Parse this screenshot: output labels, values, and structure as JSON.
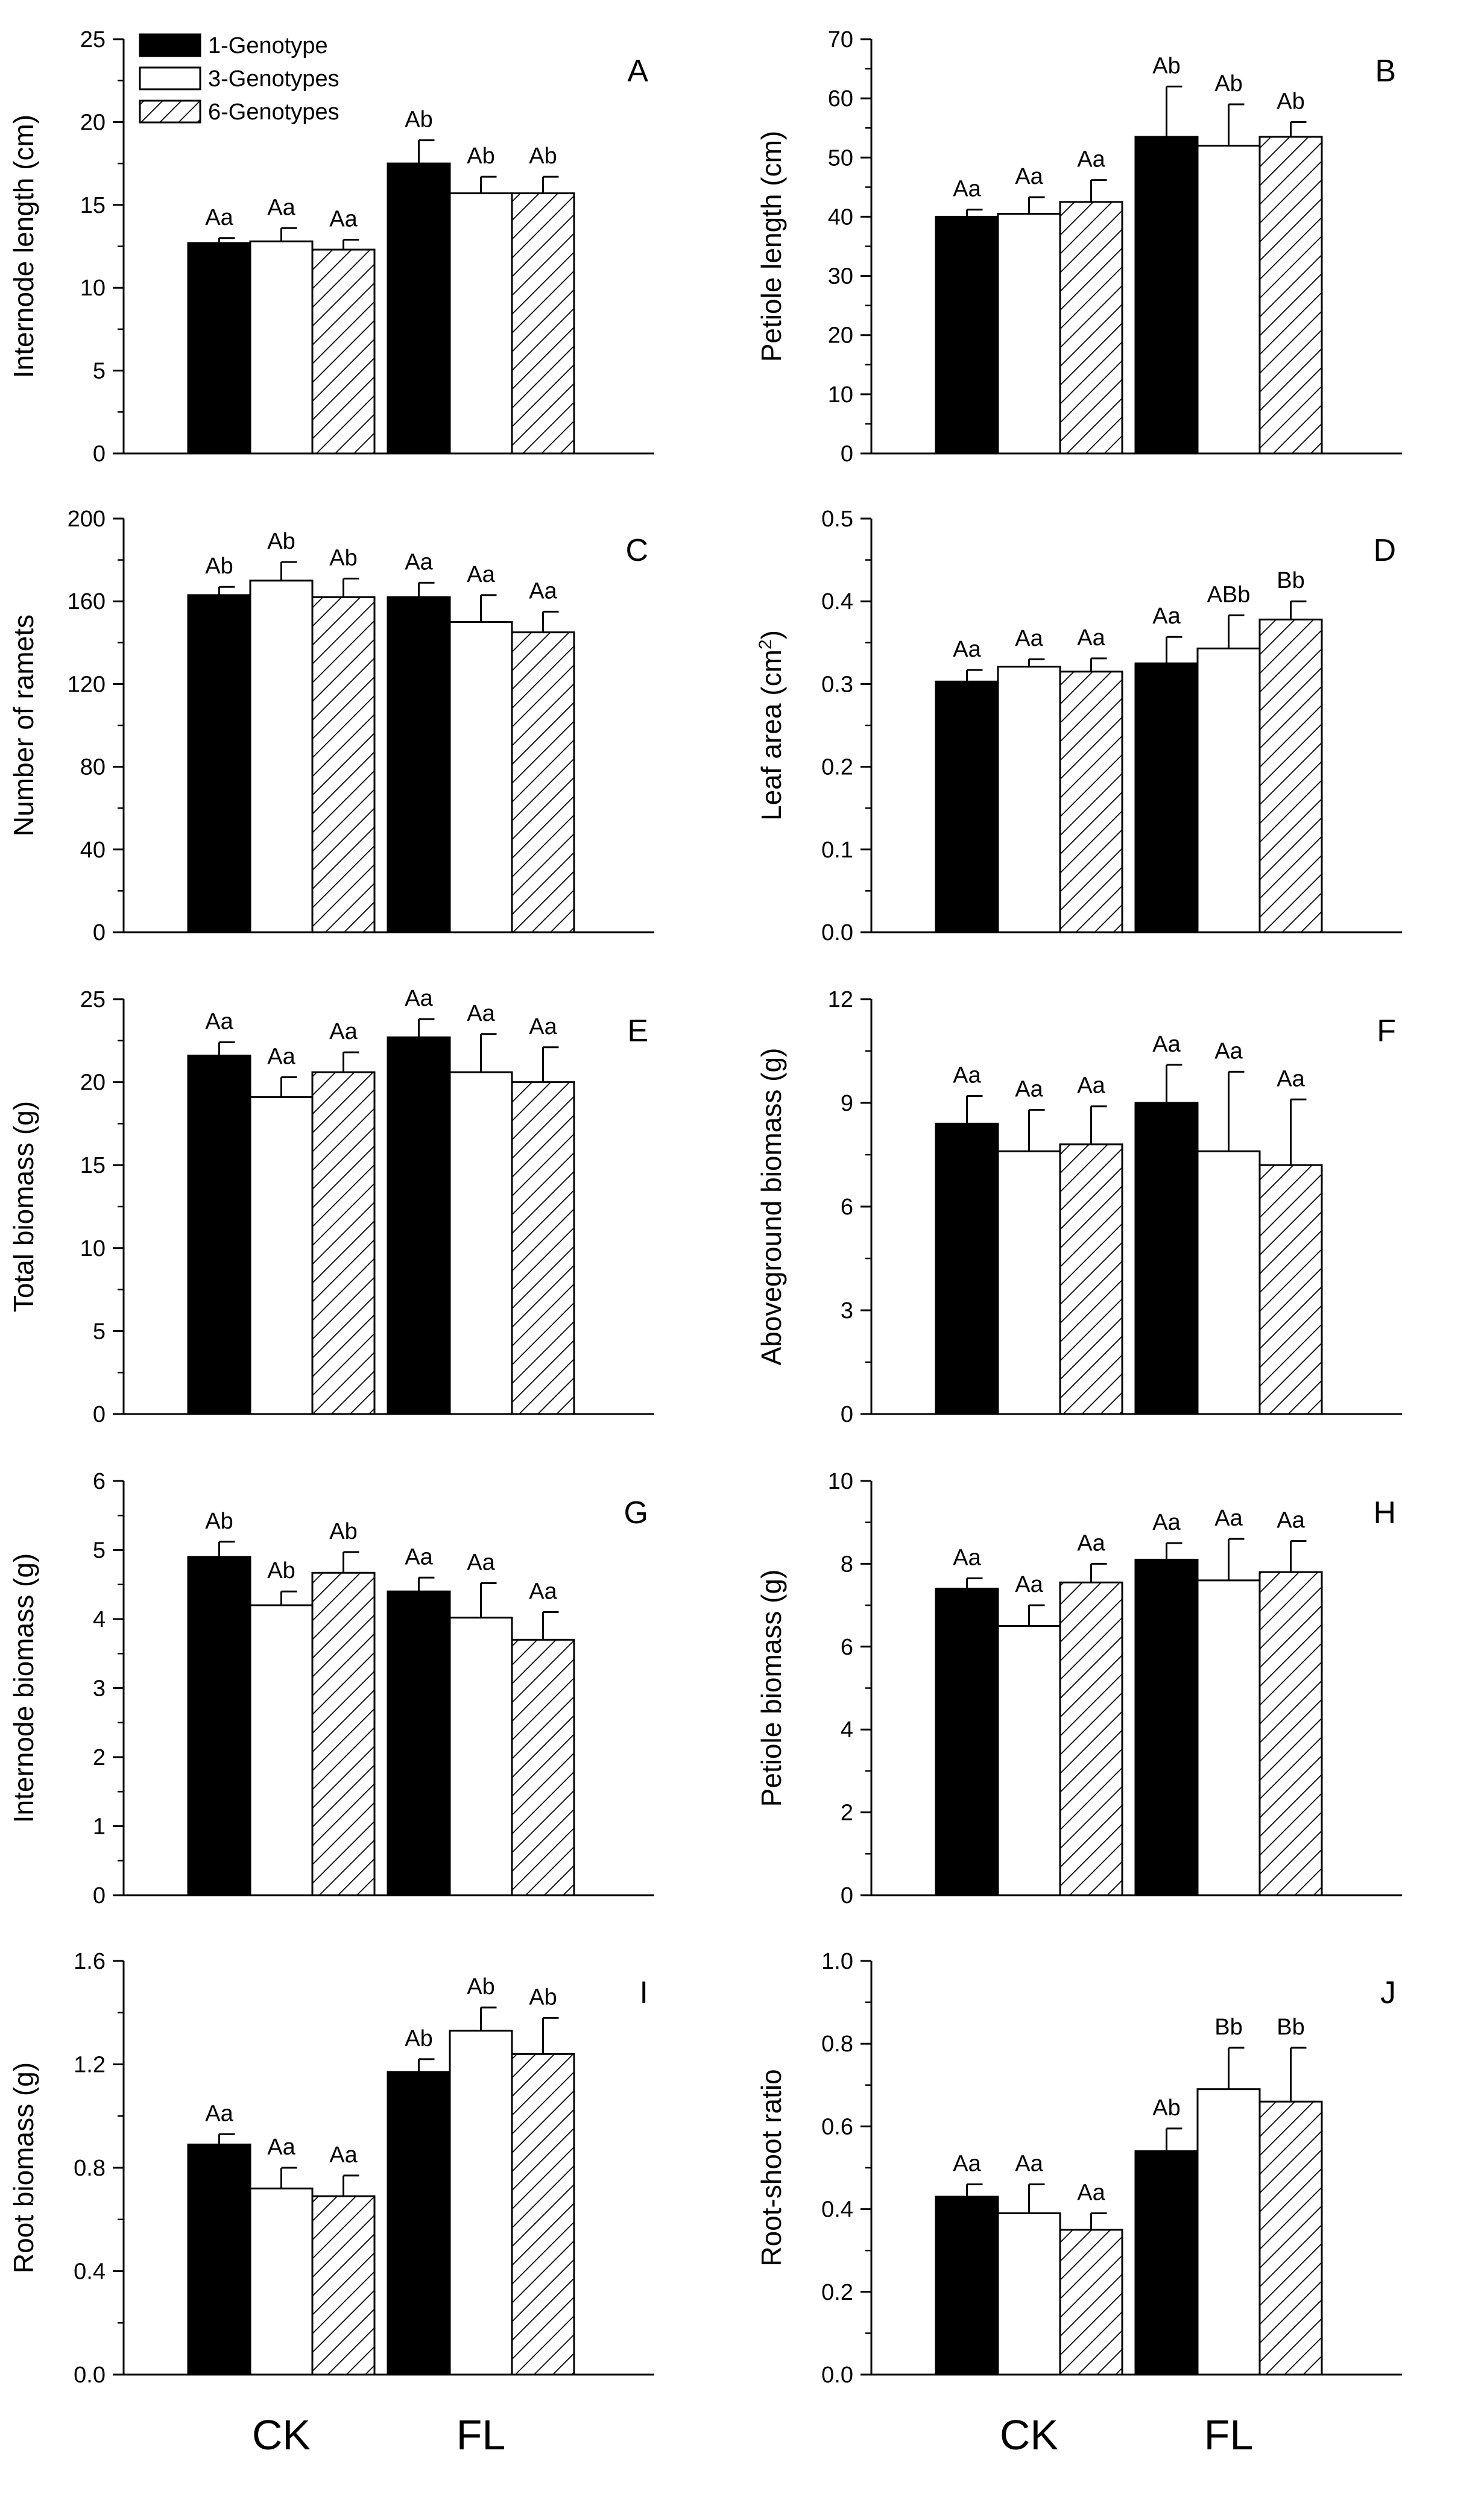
{
  "legend": {
    "items": [
      {
        "label": "1-Genotype",
        "style": "solid"
      },
      {
        "label": "3-Genotypes",
        "style": "open"
      },
      {
        "label": "6-Genotypes",
        "style": "hatched"
      }
    ]
  },
  "x_axis_labels": [
    "CK",
    "FL"
  ],
  "colors": {
    "solid": "#000000",
    "open": "#ffffff",
    "hatch_line": "#000000"
  },
  "chart_data": [
    {
      "type": "bar",
      "panel": "A",
      "ylabel": "Internode length (cm)",
      "ylim": [
        0,
        25
      ],
      "yticks": [
        0,
        5,
        10,
        15,
        20,
        25
      ],
      "categories": [
        "CK",
        "FL"
      ],
      "series": [
        {
          "name": "1-Genotype",
          "values": [
            12.7,
            17.5
          ],
          "errors": [
            0.3,
            1.4
          ],
          "labels": [
            "Aa",
            "Ab"
          ]
        },
        {
          "name": "3-Genotypes",
          "values": [
            12.8,
            15.7
          ],
          "errors": [
            0.8,
            1.0
          ],
          "labels": [
            "Aa",
            "Ab"
          ]
        },
        {
          "name": "6-Genotypes",
          "values": [
            12.3,
            15.7
          ],
          "errors": [
            0.6,
            1.0
          ],
          "labels": [
            "Aa",
            "Ab"
          ]
        }
      ]
    },
    {
      "type": "bar",
      "panel": "B",
      "ylabel": "Petiole length (cm)",
      "ylim": [
        0,
        70
      ],
      "yticks": [
        0,
        10,
        20,
        30,
        40,
        50,
        60,
        70
      ],
      "categories": [
        "CK",
        "FL"
      ],
      "series": [
        {
          "name": "1-Genotype",
          "values": [
            40,
            53.5
          ],
          "errors": [
            1.2,
            8.5
          ],
          "labels": [
            "Aa",
            "Ab"
          ]
        },
        {
          "name": "3-Genotypes",
          "values": [
            40.5,
            52
          ],
          "errors": [
            2.8,
            7.0
          ],
          "labels": [
            "Aa",
            "Ab"
          ]
        },
        {
          "name": "6-Genotypes",
          "values": [
            42.5,
            53.5
          ],
          "errors": [
            3.7,
            2.5
          ],
          "labels": [
            "Aa",
            "Ab"
          ]
        }
      ]
    },
    {
      "type": "bar",
      "panel": "C",
      "ylabel": "Number of  ramets",
      "ylim": [
        0,
        200
      ],
      "yticks": [
        0,
        40,
        80,
        120,
        160,
        200
      ],
      "categories": [
        "CK",
        "FL"
      ],
      "series": [
        {
          "name": "1-Genotype",
          "values": [
            163,
            162
          ],
          "errors": [
            4,
            7
          ],
          "labels": [
            "Ab",
            "Aa"
          ]
        },
        {
          "name": "3-Genotypes",
          "values": [
            170,
            150
          ],
          "errors": [
            9,
            13
          ],
          "labels": [
            "Ab",
            "Aa"
          ]
        },
        {
          "name": "6-Genotypes",
          "values": [
            162,
            145
          ],
          "errors": [
            9,
            10
          ],
          "labels": [
            "Ab",
            "Aa"
          ]
        }
      ]
    },
    {
      "type": "bar",
      "panel": "D",
      "ylabel": "Leaf area (cm",
      "ylabel_sup": "2",
      "ylabel_end": ")",
      "ylim": [
        0,
        0.5
      ],
      "yticks": [
        0.0,
        0.1,
        0.2,
        0.3,
        0.4,
        0.5
      ],
      "categories": [
        "CK",
        "FL"
      ],
      "series": [
        {
          "name": "1-Genotype",
          "values": [
            0.303,
            0.325
          ],
          "errors": [
            0.014,
            0.032
          ],
          "labels": [
            "Aa",
            "Aa"
          ]
        },
        {
          "name": "3-Genotypes",
          "values": [
            0.321,
            0.343
          ],
          "errors": [
            0.009,
            0.04
          ],
          "labels": [
            "Aa",
            "ABb"
          ]
        },
        {
          "name": "6-Genotypes",
          "values": [
            0.315,
            0.378
          ],
          "errors": [
            0.016,
            0.022
          ],
          "labels": [
            "Aa",
            "Bb"
          ]
        }
      ]
    },
    {
      "type": "bar",
      "panel": "E",
      "ylabel": "Total biomass (g)",
      "ylim": [
        0,
        25
      ],
      "yticks": [
        0,
        5,
        10,
        15,
        20,
        25
      ],
      "categories": [
        "CK",
        "FL"
      ],
      "series": [
        {
          "name": "1-Genotype",
          "values": [
            21.6,
            22.7
          ],
          "errors": [
            0.8,
            1.1
          ],
          "labels": [
            "Aa",
            "Aa"
          ]
        },
        {
          "name": "3-Genotypes",
          "values": [
            19.1,
            20.6
          ],
          "errors": [
            1.2,
            2.3
          ],
          "labels": [
            "Aa",
            "Aa"
          ]
        },
        {
          "name": "6-Genotypes",
          "values": [
            20.6,
            20.0
          ],
          "errors": [
            1.2,
            2.1
          ],
          "labels": [
            "Aa",
            "Aa"
          ]
        }
      ]
    },
    {
      "type": "bar",
      "panel": "F",
      "ylabel": "Aboveground biomass (g)",
      "ylim": [
        0,
        12
      ],
      "yticks": [
        0,
        3,
        6,
        9,
        12
      ],
      "categories": [
        "CK",
        "FL"
      ],
      "series": [
        {
          "name": "1-Genotype",
          "values": [
            8.4,
            9.0
          ],
          "errors": [
            0.8,
            1.1
          ],
          "labels": [
            "Aa",
            "Aa"
          ]
        },
        {
          "name": "3-Genotypes",
          "values": [
            7.6,
            7.6
          ],
          "errors": [
            1.2,
            2.3
          ],
          "labels": [
            "Aa",
            "Aa"
          ]
        },
        {
          "name": "6-Genotypes",
          "values": [
            7.8,
            7.2
          ],
          "errors": [
            1.1,
            1.9
          ],
          "labels": [
            "Aa",
            "Aa"
          ]
        }
      ]
    },
    {
      "type": "bar",
      "panel": "G",
      "ylabel": "Internode biomass (g)",
      "ylim": [
        0,
        6
      ],
      "yticks": [
        0,
        1,
        2,
        3,
        4,
        5,
        6
      ],
      "categories": [
        "CK",
        "FL"
      ],
      "series": [
        {
          "name": "1-Genotype",
          "values": [
            4.9,
            4.4
          ],
          "errors": [
            0.22,
            0.2
          ],
          "labels": [
            "Ab",
            "Aa"
          ]
        },
        {
          "name": "3-Genotypes",
          "values": [
            4.2,
            4.02
          ],
          "errors": [
            0.2,
            0.5
          ],
          "labels": [
            "Ab",
            "Aa"
          ]
        },
        {
          "name": "6-Genotypes",
          "values": [
            4.67,
            3.7
          ],
          "errors": [
            0.3,
            0.4
          ],
          "labels": [
            "Ab",
            "Aa"
          ]
        }
      ]
    },
    {
      "type": "bar",
      "panel": "H",
      "ylabel": "Petiole biomass (g)",
      "ylim": [
        0,
        10
      ],
      "yticks": [
        0,
        2,
        4,
        6,
        8,
        10
      ],
      "categories": [
        "CK",
        "FL"
      ],
      "series": [
        {
          "name": "1-Genotype",
          "values": [
            7.4,
            8.1
          ],
          "errors": [
            0.25,
            0.4
          ],
          "labels": [
            "Aa",
            "Aa"
          ]
        },
        {
          "name": "3-Genotypes",
          "values": [
            6.5,
            7.6
          ],
          "errors": [
            0.5,
            1.0
          ],
          "labels": [
            "Aa",
            "Aa"
          ]
        },
        {
          "name": "6-Genotypes",
          "values": [
            7.55,
            7.8
          ],
          "errors": [
            0.45,
            0.75
          ],
          "labels": [
            "Aa",
            "Aa"
          ]
        }
      ]
    },
    {
      "type": "bar",
      "panel": "I",
      "ylabel": "Root biomass (g)",
      "ylim": [
        0,
        1.6
      ],
      "yticks": [
        0.0,
        0.4,
        0.8,
        1.2,
        1.6
      ],
      "categories": [
        "CK",
        "FL"
      ],
      "series": [
        {
          "name": "1-Genotype",
          "values": [
            0.89,
            1.17
          ],
          "errors": [
            0.04,
            0.05
          ],
          "labels": [
            "Aa",
            "Ab"
          ]
        },
        {
          "name": "3-Genotypes",
          "values": [
            0.72,
            1.33
          ],
          "errors": [
            0.08,
            0.09
          ],
          "labels": [
            "Aa",
            "Ab"
          ]
        },
        {
          "name": "6-Genotypes",
          "values": [
            0.69,
            1.24
          ],
          "errors": [
            0.08,
            0.14
          ],
          "labels": [
            "Aa",
            "Ab"
          ]
        }
      ]
    },
    {
      "type": "bar",
      "panel": "J",
      "ylabel": "Root-shoot ratio",
      "ylim": [
        0,
        1.0
      ],
      "yticks": [
        0.0,
        0.2,
        0.4,
        0.6,
        0.8,
        1.0
      ],
      "categories": [
        "CK",
        "FL"
      ],
      "series": [
        {
          "name": "1-Genotype",
          "values": [
            0.43,
            0.54
          ],
          "errors": [
            0.03,
            0.055
          ],
          "labels": [
            "Aa",
            "Ab"
          ]
        },
        {
          "name": "3-Genotypes",
          "values": [
            0.39,
            0.69
          ],
          "errors": [
            0.07,
            0.1
          ],
          "labels": [
            "Aa",
            "Bb"
          ]
        },
        {
          "name": "6-Genotypes",
          "values": [
            0.35,
            0.66
          ],
          "errors": [
            0.04,
            0.13
          ],
          "labels": [
            "Aa",
            "Bb"
          ]
        }
      ]
    }
  ]
}
